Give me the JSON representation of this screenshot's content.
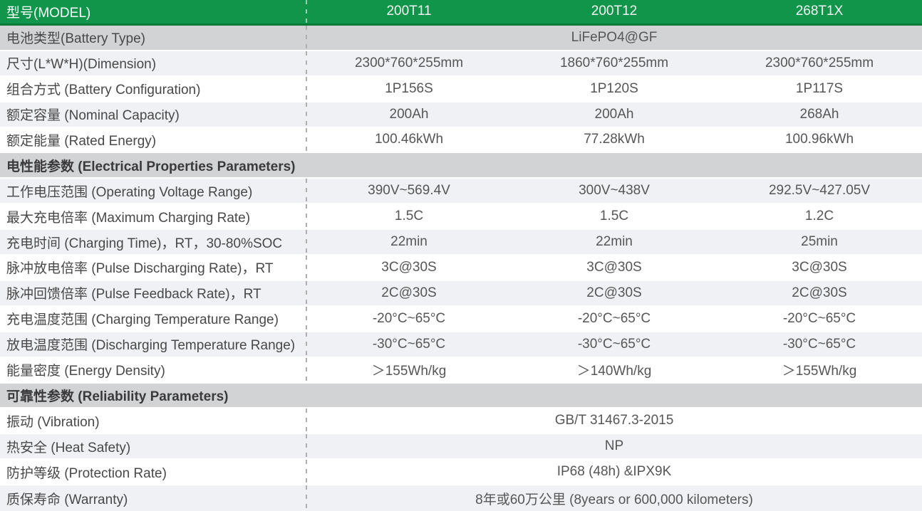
{
  "colors": {
    "header_green": "#10954a",
    "header_green_dark": "#0a7c3a",
    "section_gray": "#d2d3d5",
    "row_alt": "#f0f1f4",
    "row_white": "#ffffff",
    "label_text": "#48484a",
    "value_text": "#565658",
    "header_text": "#ffffff"
  },
  "table": {
    "header": {
      "label": "型号(MODEL)",
      "models": [
        "200T11",
        "200T12",
        "268T1X"
      ]
    },
    "rows": [
      {
        "type": "span",
        "label": "电池类型(Battery Type)",
        "value": "LiFePO4@GF"
      },
      {
        "type": "triple",
        "label": "尺寸(L*W*H)(Dimension)",
        "values": [
          "2300*760*255mm",
          "1860*760*255mm",
          "2300*760*255mm"
        ]
      },
      {
        "type": "triple",
        "label": "组合方式 (Battery Configuration)",
        "values": [
          "1P156S",
          "1P120S",
          "1P117S"
        ]
      },
      {
        "type": "triple",
        "label": "额定容量 (Nominal Capacity)",
        "values": [
          "200Ah",
          "200Ah",
          "268Ah"
        ]
      },
      {
        "type": "triple",
        "label": "额定能量 (Rated Energy)",
        "values": [
          "100.46kWh",
          "77.28kWh",
          "100.96kWh"
        ]
      },
      {
        "type": "section",
        "label": "电性能参数 (Electrical Properties Parameters)"
      },
      {
        "type": "triple",
        "label": "工作电压范围 (Operating Voltage Range)",
        "values": [
          "390V~569.4V",
          "300V~438V",
          "292.5V~427.05V"
        ]
      },
      {
        "type": "triple",
        "label": "最大充电倍率 (Maximum Charging Rate)",
        "values": [
          "1.5C",
          "1.5C",
          "1.2C"
        ]
      },
      {
        "type": "triple",
        "label": "充电时间 (Charging Time)，RT，30-80%SOC",
        "values": [
          "22min",
          "22min",
          "25min"
        ]
      },
      {
        "type": "triple",
        "label": "脉冲放电倍率 (Pulse Discharging Rate)，RT",
        "values": [
          "3C@30S",
          "3C@30S",
          "3C@30S"
        ]
      },
      {
        "type": "triple",
        "label": "脉冲回馈倍率 (Pulse Feedback Rate)，RT",
        "values": [
          "2C@30S",
          "2C@30S",
          "2C@30S"
        ]
      },
      {
        "type": "triple",
        "label": "充电温度范围 (Charging Temperature Range)",
        "values": [
          "-20°C~65°C",
          "-20°C~65°C",
          "-20°C~65°C"
        ]
      },
      {
        "type": "triple",
        "label": "放电温度范围 (Discharging Temperature Range)",
        "values": [
          "-30°C~65°C",
          "-30°C~65°C",
          "-30°C~65°C"
        ]
      },
      {
        "type": "triple",
        "label": "能量密度 (Energy Density)",
        "values": [
          "＞155Wh/kg",
          "＞140Wh/kg",
          "＞155Wh/kg"
        ]
      },
      {
        "type": "section",
        "label": "可靠性参数 (Reliability Parameters)"
      },
      {
        "type": "span",
        "label": "振动 (Vibration)",
        "value": "GB/T 31467.3-2015"
      },
      {
        "type": "span",
        "label": "热安全 (Heat Safety)",
        "value": "NP"
      },
      {
        "type": "span",
        "label": "防护等级 (Protection Rate)",
        "value": "IP68 (48h) &IPX9K"
      },
      {
        "type": "span",
        "label": "质保寿命 (Warranty)",
        "value": "8年或60万公里 (8years or 600,000 kilometers)"
      }
    ]
  }
}
